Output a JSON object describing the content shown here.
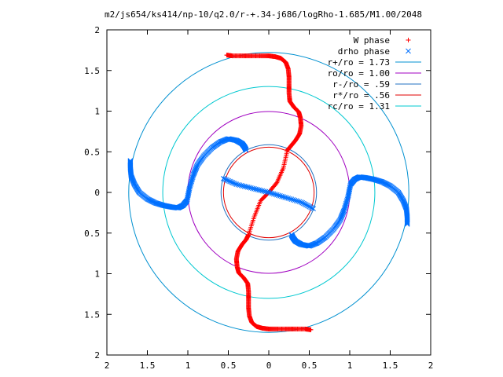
{
  "chart_data": {
    "type": "scatter",
    "title": "m2/js654/ks414/np-10/q2.0/r-+.34-j686/logRho-1.685/M1.00/2048",
    "xlabel": "",
    "ylabel": "",
    "xlim": [
      -2,
      2
    ],
    "ylim": [
      -2,
      2
    ],
    "x_tick_labels": [
      "2",
      "1.5",
      "1",
      "0.5",
      "0",
      "0.5",
      "1",
      "1.5",
      "2"
    ],
    "y_tick_labels": [
      "2",
      "1.5",
      "1",
      "0.5",
      "0",
      "0.5",
      "1",
      "1.5",
      "2"
    ],
    "grid": false,
    "legend_position": "top-right",
    "series": [
      {
        "name": "W phase",
        "marker": "+",
        "color": "#ff0000",
        "arms": [
          [
            [
              -0.25,
              -0.52
            ],
            [
              -0.18,
              -0.3
            ],
            [
              -0.1,
              -0.1
            ],
            [
              0.0,
              0.0
            ],
            [
              0.1,
              0.12
            ],
            [
              0.18,
              0.3
            ],
            [
              0.23,
              0.52
            ]
          ],
          [
            [
              0.23,
              0.52
            ],
            [
              0.28,
              0.58
            ],
            [
              0.33,
              0.64
            ],
            [
              0.38,
              0.72
            ],
            [
              0.4,
              0.82
            ],
            [
              0.39,
              0.92
            ],
            [
              0.37,
              0.99
            ],
            [
              0.31,
              1.05
            ],
            [
              0.26,
              1.12
            ],
            [
              0.25,
              1.22
            ],
            [
              0.25,
              1.32
            ],
            [
              0.25,
              1.42
            ],
            [
              0.24,
              1.52
            ],
            [
              0.21,
              1.6
            ],
            [
              0.15,
              1.65
            ],
            [
              0.08,
              1.67
            ],
            [
              0.0,
              1.68
            ],
            [
              -0.1,
              1.68
            ],
            [
              -0.22,
              1.68
            ],
            [
              -0.33,
              1.68
            ],
            [
              -0.45,
              1.68
            ],
            [
              -0.52,
              1.69
            ]
          ],
          [
            [
              -0.25,
              -0.52
            ],
            [
              -0.28,
              -0.58
            ],
            [
              -0.33,
              -0.64
            ],
            [
              -0.38,
              -0.72
            ],
            [
              -0.4,
              -0.82
            ],
            [
              -0.39,
              -0.92
            ],
            [
              -0.37,
              -0.99
            ],
            [
              -0.31,
              -1.05
            ],
            [
              -0.26,
              -1.12
            ],
            [
              -0.25,
              -1.22
            ],
            [
              -0.25,
              -1.32
            ],
            [
              -0.25,
              -1.42
            ],
            [
              -0.24,
              -1.52
            ],
            [
              -0.21,
              -1.6
            ],
            [
              -0.15,
              -1.65
            ],
            [
              -0.08,
              -1.67
            ],
            [
              0.0,
              -1.68
            ],
            [
              0.1,
              -1.68
            ],
            [
              0.22,
              -1.68
            ],
            [
              0.33,
              -1.68
            ],
            [
              0.45,
              -1.68
            ],
            [
              0.52,
              -1.69
            ]
          ]
        ]
      },
      {
        "name": "drho phase",
        "marker": "x",
        "color": "#0070ff",
        "arms": [
          [
            [
              -0.56,
              0.17
            ],
            [
              -0.4,
              0.1
            ],
            [
              -0.2,
              0.05
            ],
            [
              0.0,
              0.0
            ],
            [
              0.2,
              -0.06
            ],
            [
              0.4,
              -0.12
            ],
            [
              0.55,
              -0.2
            ]
          ],
          [
            [
              -0.28,
              0.52
            ],
            [
              -0.3,
              0.56
            ],
            [
              -0.33,
              0.6
            ],
            [
              -0.4,
              0.64
            ],
            [
              -0.5,
              0.66
            ],
            [
              -0.6,
              0.62
            ],
            [
              -0.7,
              0.55
            ],
            [
              -0.8,
              0.45
            ],
            [
              -0.88,
              0.34
            ],
            [
              -0.93,
              0.22
            ],
            [
              -0.98,
              0.05
            ],
            [
              -1.01,
              -0.1
            ],
            [
              -1.06,
              -0.16
            ],
            [
              -1.12,
              -0.19
            ],
            [
              -1.2,
              -0.18
            ],
            [
              -1.3,
              -0.16
            ],
            [
              -1.4,
              -0.13
            ],
            [
              -1.5,
              -0.08
            ],
            [
              -1.6,
              0.0
            ],
            [
              -1.66,
              0.1
            ],
            [
              -1.7,
              0.2
            ],
            [
              -1.71,
              0.3
            ],
            [
              -1.71,
              0.39
            ]
          ],
          [
            [
              0.28,
              -0.52
            ],
            [
              0.3,
              -0.56
            ],
            [
              0.33,
              -0.6
            ],
            [
              0.4,
              -0.64
            ],
            [
              0.5,
              -0.66
            ],
            [
              0.6,
              -0.62
            ],
            [
              0.7,
              -0.55
            ],
            [
              0.8,
              -0.45
            ],
            [
              0.88,
              -0.34
            ],
            [
              0.93,
              -0.22
            ],
            [
              0.98,
              -0.05
            ],
            [
              1.01,
              0.1
            ],
            [
              1.06,
              0.16
            ],
            [
              1.12,
              0.19
            ],
            [
              1.2,
              0.18
            ],
            [
              1.3,
              0.16
            ],
            [
              1.4,
              0.13
            ],
            [
              1.5,
              0.08
            ],
            [
              1.6,
              0.0
            ],
            [
              1.66,
              -0.1
            ],
            [
              1.7,
              -0.2
            ],
            [
              1.71,
              -0.3
            ],
            [
              1.71,
              -0.39
            ]
          ]
        ]
      }
    ],
    "circles": [
      {
        "name": "r+/ro = 1.73",
        "radius": 1.73,
        "color": "#0090d0"
      },
      {
        "name": "ro/ro = 1.00",
        "radius": 1.0,
        "color": "#a000c0"
      },
      {
        "name": "r-/ro = .59",
        "radius": 0.59,
        "color": "#2070c0"
      },
      {
        "name": "r*/ro = .56",
        "radius": 0.56,
        "color": "#e00000"
      },
      {
        "name": "rc/ro = 1.31",
        "radius": 1.31,
        "color": "#00c8d0"
      }
    ]
  }
}
